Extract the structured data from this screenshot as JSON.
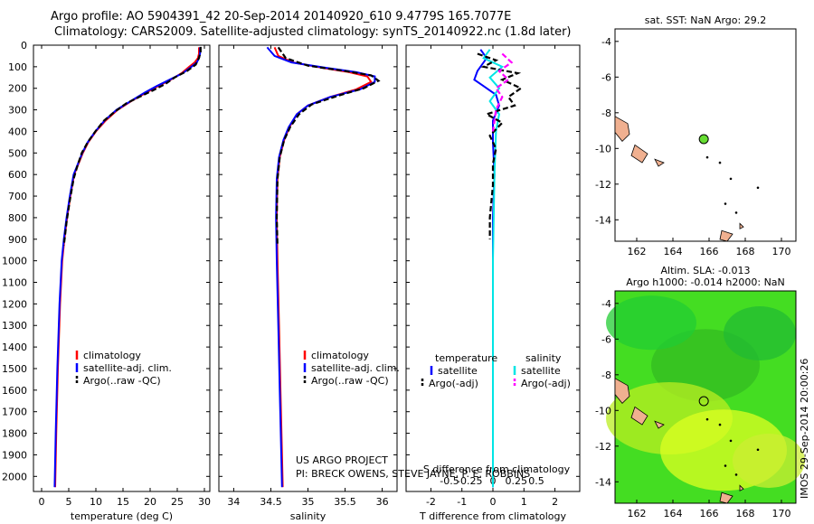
{
  "header": {
    "line1": "Argo profile: AO 5904391_42 20-Sep-2014 20140920_610 9.4779S 165.7077E",
    "line2": "Climatology: CARS2009. Satellite-adjusted climatology: synTS_20140922.nc (1.8d later)"
  },
  "colors": {
    "climatology": "#ff0000",
    "satellite": "#0000ff",
    "argo": "#000000",
    "sal_satellite": "#00e5e5",
    "sal_argo": "#ff00ff",
    "map_land": "#f0b090",
    "sst_marker": "#66dd33"
  },
  "depth_axis": {
    "ticks": [
      0,
      100,
      200,
      300,
      400,
      500,
      600,
      700,
      800,
      900,
      1000,
      1100,
      1200,
      1300,
      1400,
      1500,
      1600,
      1700,
      1800,
      1900,
      2000
    ],
    "range": [
      0,
      2070
    ]
  },
  "chart_data": [
    {
      "type": "line",
      "xlabel": "temperature (deg C)",
      "xlim": [
        -1.5,
        31
      ],
      "xticks": [
        0,
        5,
        10,
        15,
        20,
        25,
        30
      ],
      "legend": [
        "climatology",
        "satellite-adj. clim.",
        "Argo(..raw -QC)"
      ],
      "series": [
        {
          "name": "climatology",
          "color": "#ff0000",
          "points": [
            [
              29.0,
              10
            ],
            [
              29.0,
              40
            ],
            [
              28.8,
              60
            ],
            [
              28.2,
              80
            ],
            [
              27.2,
              100
            ],
            [
              25.8,
              130
            ],
            [
              23.8,
              160
            ],
            [
              21.5,
              190
            ],
            [
              19.3,
              220
            ],
            [
              16.5,
              260
            ],
            [
              14.0,
              300
            ],
            [
              11.8,
              350
            ],
            [
              10.0,
              400
            ],
            [
              8.6,
              450
            ],
            [
              7.6,
              500
            ],
            [
              6.8,
              550
            ],
            [
              6.0,
              600
            ],
            [
              5.3,
              700
            ],
            [
              4.7,
              800
            ],
            [
              4.2,
              900
            ],
            [
              3.8,
              1000
            ],
            [
              3.4,
              1200
            ],
            [
              3.0,
              1500
            ],
            [
              2.7,
              1800
            ],
            [
              2.5,
              2050
            ]
          ]
        },
        {
          "name": "satellite-adj. clim.",
          "color": "#0000ff",
          "points": [
            [
              29.2,
              10
            ],
            [
              29.2,
              40
            ],
            [
              29.0,
              60
            ],
            [
              28.6,
              80
            ],
            [
              27.6,
              100
            ],
            [
              26.0,
              130
            ],
            [
              23.6,
              160
            ],
            [
              21.2,
              190
            ],
            [
              19.0,
              220
            ],
            [
              16.4,
              260
            ],
            [
              13.8,
              300
            ],
            [
              11.6,
              350
            ],
            [
              9.9,
              400
            ],
            [
              8.5,
              450
            ],
            [
              7.5,
              500
            ],
            [
              6.7,
              550
            ],
            [
              5.9,
              600
            ],
            [
              5.2,
              700
            ],
            [
              4.6,
              800
            ],
            [
              4.1,
              900
            ],
            [
              3.7,
              1000
            ],
            [
              3.3,
              1200
            ],
            [
              2.9,
              1500
            ],
            [
              2.6,
              1800
            ],
            [
              2.4,
              2050
            ]
          ]
        },
        {
          "name": "Argo(..raw -QC)",
          "color": "#000000",
          "points": [
            [
              29.3,
              8
            ],
            [
              29.3,
              30
            ],
            [
              29.0,
              60
            ],
            [
              28.4,
              90
            ],
            [
              26.8,
              120
            ],
            [
              24.5,
              150
            ],
            [
              22.8,
              180
            ],
            [
              20.5,
              210
            ],
            [
              18.0,
              240
            ],
            [
              15.6,
              270
            ],
            [
              13.4,
              310
            ],
            [
              11.5,
              350
            ],
            [
              9.9,
              400
            ],
            [
              8.5,
              450
            ],
            [
              7.4,
              500
            ],
            [
              6.6,
              560
            ],
            [
              5.9,
              620
            ],
            [
              5.2,
              720
            ],
            [
              4.6,
              820
            ],
            [
              4.1,
              930
            ]
          ]
        }
      ]
    },
    {
      "type": "line",
      "xlabel": "salinity",
      "xlim": [
        33.8,
        36.2
      ],
      "xticks": [
        34,
        34.5,
        35,
        35.5,
        36
      ],
      "legend": [
        "climatology",
        "satellite-adj. clim.",
        "Argo(..raw -QC)"
      ],
      "series": [
        {
          "name": "climatology",
          "color": "#ff0000",
          "points": [
            [
              34.55,
              10
            ],
            [
              34.6,
              50
            ],
            [
              34.8,
              80
            ],
            [
              35.2,
              105
            ],
            [
              35.55,
              125
            ],
            [
              35.8,
              145
            ],
            [
              35.85,
              170
            ],
            [
              35.65,
              205
            ],
            [
              35.3,
              240
            ],
            [
              35.0,
              280
            ],
            [
              34.85,
              320
            ],
            [
              34.75,
              380
            ],
            [
              34.68,
              440
            ],
            [
              34.62,
              520
            ],
            [
              34.59,
              620
            ],
            [
              34.58,
              800
            ],
            [
              34.59,
              1000
            ],
            [
              34.61,
              1300
            ],
            [
              34.63,
              1600
            ],
            [
              34.65,
              1900
            ],
            [
              34.66,
              2050
            ]
          ]
        },
        {
          "name": "satellite-adj. clim.",
          "color": "#0000ff",
          "points": [
            [
              34.45,
              10
            ],
            [
              34.55,
              50
            ],
            [
              34.78,
              80
            ],
            [
              35.25,
              105
            ],
            [
              35.65,
              125
            ],
            [
              35.9,
              145
            ],
            [
              35.9,
              170
            ],
            [
              35.7,
              205
            ],
            [
              35.3,
              240
            ],
            [
              35.0,
              280
            ],
            [
              34.85,
              320
            ],
            [
              34.74,
              380
            ],
            [
              34.67,
              440
            ],
            [
              34.61,
              520
            ],
            [
              34.58,
              620
            ],
            [
              34.57,
              800
            ],
            [
              34.58,
              1000
            ],
            [
              34.6,
              1300
            ],
            [
              34.62,
              1600
            ],
            [
              34.64,
              1900
            ],
            [
              34.65,
              2050
            ]
          ]
        },
        {
          "name": "Argo(..raw -QC)",
          "color": "#000000",
          "points": [
            [
              34.6,
              10
            ],
            [
              34.7,
              60
            ],
            [
              35.0,
              95
            ],
            [
              35.5,
              120
            ],
            [
              35.85,
              140
            ],
            [
              35.95,
              165
            ],
            [
              35.75,
              200
            ],
            [
              35.4,
              235
            ],
            [
              35.05,
              275
            ],
            [
              34.88,
              320
            ],
            [
              34.76,
              380
            ],
            [
              34.68,
              440
            ],
            [
              34.62,
              520
            ],
            [
              34.59,
              620
            ],
            [
              34.58,
              800
            ],
            [
              34.59,
              930
            ]
          ]
        }
      ]
    },
    {
      "type": "line",
      "xlabel": "T difference from climatology",
      "xlabel2": "S difference from climatology",
      "xlim": [
        -2.8,
        2.8
      ],
      "xticks": [
        -2,
        -1,
        0,
        1,
        2
      ],
      "xticks2": [
        "-0.5",
        "-0.25",
        "0",
        "0.25",
        "0.5"
      ],
      "legend": [
        "temperature",
        "satellite",
        "Argo(-adj)",
        "salinity",
        "satellite",
        "Argo(-adj)"
      ],
      "series": [
        {
          "name": "satellite",
          "color": "#0000ff",
          "points": [
            [
              -0.4,
              20
            ],
            [
              -0.2,
              60
            ],
            [
              -0.5,
              120
            ],
            [
              -0.6,
              160
            ],
            [
              -0.3,
              190
            ],
            [
              0.1,
              230
            ],
            [
              0.2,
              280
            ],
            [
              0.0,
              350
            ],
            [
              0.0,
              450
            ],
            [
              0.05,
              600
            ],
            [
              0.0,
              800
            ],
            [
              0.0,
              1000
            ],
            [
              0.0,
              1500
            ],
            [
              0.0,
              2050
            ]
          ]
        },
        {
          "name": "salinity satellite",
          "color": "#00e5e5",
          "points": [
            [
              -0.1,
              20
            ],
            [
              -0.3,
              60
            ],
            [
              0.3,
              100
            ],
            [
              -0.1,
              150
            ],
            [
              0.2,
              200
            ],
            [
              -0.1,
              260
            ],
            [
              0.2,
              320
            ],
            [
              0.1,
              400
            ],
            [
              0.05,
              600
            ],
            [
              0.0,
              1000
            ],
            [
              0.0,
              1500
            ],
            [
              0.0,
              2050
            ]
          ]
        },
        {
          "name": "Argo(-adj)",
          "color": "#000000",
          "points": [
            [
              -0.5,
              40
            ],
            [
              0.1,
              70
            ],
            [
              -0.3,
              100
            ],
            [
              0.8,
              130
            ],
            [
              0.3,
              160
            ],
            [
              0.9,
              200
            ],
            [
              0.5,
              240
            ],
            [
              0.7,
              280
            ],
            [
              -0.2,
              320
            ],
            [
              0.3,
              360
            ],
            [
              -0.1,
              420
            ],
            [
              0.1,
              480
            ],
            [
              0.0,
              550
            ],
            [
              0.0,
              650
            ],
            [
              -0.1,
              800
            ],
            [
              -0.1,
              900
            ]
          ]
        },
        {
          "name": "salinity Argo(-adj)",
          "color": "#ff00ff",
          "points": [
            [
              0.3,
              40
            ],
            [
              0.6,
              80
            ],
            [
              0.2,
              120
            ],
            [
              0.5,
              160
            ],
            [
              0.1,
              200
            ],
            [
              0.3,
              240
            ],
            [
              0.1,
              300
            ],
            [
              0.0,
              400
            ]
          ]
        }
      ]
    }
  ],
  "footer": {
    "line1": "US ARGO PROJECT",
    "line2": "PI: BRECK OWENS, STEVE JAYNE, P. E. ROBBINS"
  },
  "map_sst": {
    "title": "sat. SST: NaN Argo: 29.2",
    "xticks": [
      "162",
      "164",
      "166",
      "168",
      "170"
    ],
    "yticks": [
      "-4",
      "-6",
      "-8",
      "-10",
      "-12",
      "-14"
    ],
    "xlim": [
      160.8,
      170.8
    ],
    "ylim": [
      -15.2,
      -3.3
    ],
    "argo_location": {
      "lon": 165.7077,
      "lat": -9.4779
    }
  },
  "map_sla": {
    "title1": "Altim. SLA: -0.013",
    "title2": "Argo h1000: -0.014 h2000: NaN",
    "xticks": [
      "162",
      "164",
      "166",
      "168",
      "170"
    ],
    "yticks": [
      "-4",
      "-6",
      "-8",
      "-10",
      "-12",
      "-14"
    ],
    "xlim": [
      160.8,
      170.8
    ],
    "ylim": [
      -15.2,
      -3.3
    ],
    "argo_location": {
      "lon": 165.7077,
      "lat": -9.4779
    }
  },
  "stamp": "IMOS 29-Sep-2014 20:00:26"
}
